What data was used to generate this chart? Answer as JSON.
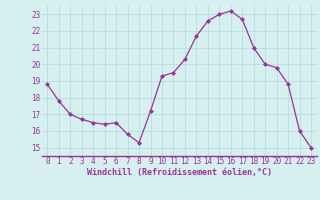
{
  "hours": [
    0,
    1,
    2,
    3,
    4,
    5,
    6,
    7,
    8,
    9,
    10,
    11,
    12,
    13,
    14,
    15,
    16,
    17,
    18,
    19,
    20,
    21,
    22,
    23
  ],
  "values": [
    18.8,
    17.8,
    17.0,
    16.7,
    16.5,
    16.4,
    16.5,
    15.8,
    15.3,
    17.2,
    19.3,
    19.5,
    20.3,
    21.7,
    22.6,
    23.0,
    23.2,
    22.7,
    21.0,
    20.0,
    19.8,
    18.8,
    16.0,
    15.0
  ],
  "line_color": "#993399",
  "marker": "D",
  "marker_size": 2.0,
  "bg_color": "#d6f0f0",
  "grid_color": "#b8dede",
  "xlabel": "Windchill (Refroidissement éolien,°C)",
  "xlabel_color": "#993399",
  "tick_color": "#993399",
  "axis_line_color": "#993399",
  "ylim": [
    14.5,
    23.5
  ],
  "xlim": [
    -0.5,
    23.5
  ],
  "yticks": [
    15,
    16,
    17,
    18,
    19,
    20,
    21,
    22,
    23
  ],
  "xticks": [
    0,
    1,
    2,
    3,
    4,
    5,
    6,
    7,
    8,
    9,
    10,
    11,
    12,
    13,
    14,
    15,
    16,
    17,
    18,
    19,
    20,
    21,
    22,
    23
  ],
  "xtick_labels": [
    "0",
    "1",
    "2",
    "3",
    "4",
    "5",
    "6",
    "7",
    "8",
    "9",
    "10",
    "11",
    "12",
    "13",
    "14",
    "15",
    "16",
    "17",
    "18",
    "19",
    "20",
    "21",
    "22",
    "23"
  ],
  "font_size_tick": 5.5,
  "font_size_label": 6.0
}
